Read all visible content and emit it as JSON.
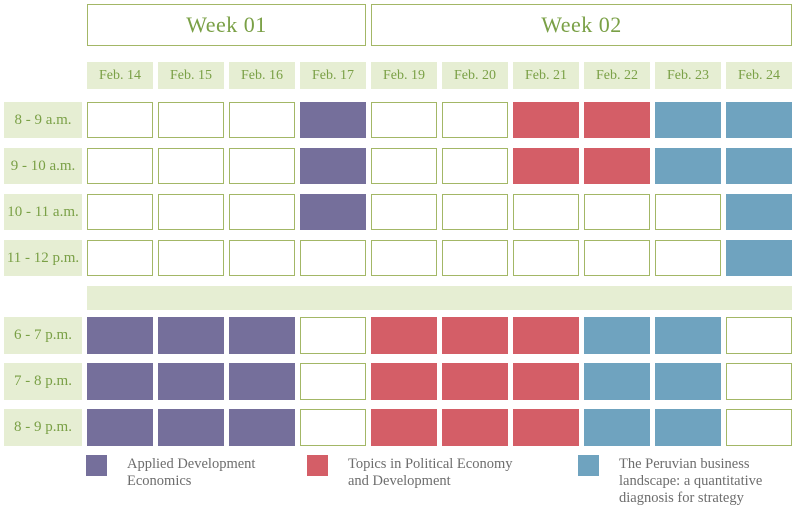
{
  "weeks": [
    {
      "label": "Week 01",
      "days": 4
    },
    {
      "label": "Week 02",
      "days": 6
    }
  ],
  "dates": [
    "Feb. 14",
    "Feb. 15",
    "Feb. 16",
    "Feb. 17",
    "Feb. 19",
    "Feb. 20",
    "Feb. 21",
    "Feb. 22",
    "Feb. 23",
    "Feb. 24"
  ],
  "courses": {
    "ade": {
      "name": "Applied Development Economics",
      "color": "#756f9b"
    },
    "tped": {
      "name": "Topics in Political Economy and Development",
      "color": "#d45e67"
    },
    "pbl": {
      "name": "The Peruvian business landscape: a quantitative diagnosis for strategy",
      "color": "#6fa3bf"
    }
  },
  "schedule": {
    "morning_rows": [
      {
        "time": "8 - 9 a.m.",
        "cells": [
          null,
          null,
          null,
          "ade",
          null,
          null,
          "tped",
          "tped",
          "pbl",
          "pbl"
        ]
      },
      {
        "time": "9 - 10 a.m.",
        "cells": [
          null,
          null,
          null,
          "ade",
          null,
          null,
          "tped",
          "tped",
          "pbl",
          "pbl"
        ]
      },
      {
        "time": "10 - 11 a.m.",
        "cells": [
          null,
          null,
          null,
          "ade",
          null,
          null,
          null,
          null,
          null,
          "pbl"
        ]
      },
      {
        "time": "11 - 12 p.m.",
        "cells": [
          null,
          null,
          null,
          null,
          null,
          null,
          null,
          null,
          null,
          "pbl"
        ]
      }
    ],
    "evening_rows": [
      {
        "time": "6 - 7 p.m.",
        "cells": [
          "ade",
          "ade",
          "ade",
          null,
          "tped",
          "tped",
          "tped",
          "pbl",
          "pbl",
          null
        ]
      },
      {
        "time": "7 - 8 p.m.",
        "cells": [
          "ade",
          "ade",
          "ade",
          null,
          "tped",
          "tped",
          "tped",
          "pbl",
          "pbl",
          null
        ]
      },
      {
        "time": "8 - 9 p.m.",
        "cells": [
          "ade",
          "ade",
          "ade",
          null,
          "tped",
          "tped",
          "tped",
          "pbl",
          "pbl",
          null
        ]
      }
    ]
  },
  "legend": [
    {
      "course": "ade"
    },
    {
      "course": "tped"
    },
    {
      "course": "pbl"
    }
  ],
  "colors": {
    "header_bg": "#e6eed3",
    "green_text": "#7aa046",
    "cell_border": "#a3b766",
    "legend_text": "#6d6d6d",
    "background": "#ffffff"
  }
}
